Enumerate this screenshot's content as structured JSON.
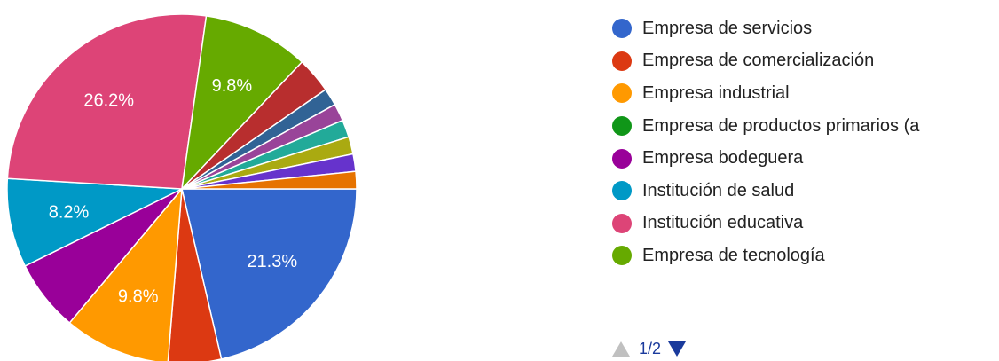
{
  "chart_data": {
    "type": "pie",
    "slices": [
      {
        "name": "Empresa de servicios",
        "value": 21.3,
        "color": "#3366cc",
        "label": "21.3%"
      },
      {
        "name": "Empresa de comercialización",
        "value": 4.9,
        "color": "#dc3912",
        "label": ""
      },
      {
        "name": "Empresa industrial",
        "value": 9.8,
        "color": "#ff9900",
        "label": "9.8%"
      },
      {
        "name": "Empresa de productos primarios (a",
        "value": 0,
        "color": "#109618",
        "label": ""
      },
      {
        "name": "Empresa bodeguera",
        "value": 6.6,
        "color": "#990099",
        "label": ""
      },
      {
        "name": "Institución de salud",
        "value": 8.2,
        "color": "#0099c6",
        "label": "8.2%"
      },
      {
        "name": "Institución educativa",
        "value": 26.2,
        "color": "#dd4477",
        "label": "26.2%"
      },
      {
        "name": "Empresa de tecnología",
        "value": 9.8,
        "color": "#66aa00",
        "label": "9.8%"
      },
      {
        "name": "",
        "value": 3.3,
        "color": "#b82e2e",
        "label": ""
      },
      {
        "name": "",
        "value": 1.6,
        "color": "#316395",
        "label": ""
      },
      {
        "name": "",
        "value": 1.6,
        "color": "#994499",
        "label": ""
      },
      {
        "name": "",
        "value": 1.6,
        "color": "#22aa99",
        "label": ""
      },
      {
        "name": "",
        "value": 1.6,
        "color": "#aaaa11",
        "label": ""
      },
      {
        "name": "",
        "value": 1.6,
        "color": "#6633cc",
        "label": ""
      },
      {
        "name": "",
        "value": 1.6,
        "color": "#e67300",
        "label": ""
      }
    ],
    "legend": {
      "position": "right",
      "items": [
        {
          "label": "Empresa de servicios",
          "color": "#3366cc"
        },
        {
          "label": "Empresa de comercialización",
          "color": "#dc3912"
        },
        {
          "label": "Empresa industrial",
          "color": "#ff9900"
        },
        {
          "label": "Empresa de productos primarios (a",
          "color": "#109618"
        },
        {
          "label": "Empresa bodeguera",
          "color": "#990099"
        },
        {
          "label": "Institución de salud",
          "color": "#0099c6"
        },
        {
          "label": "Institución educativa",
          "color": "#dd4477"
        },
        {
          "label": "Empresa de tecnología",
          "color": "#66aa00"
        }
      ]
    },
    "pager": {
      "text": "1/2"
    }
  }
}
